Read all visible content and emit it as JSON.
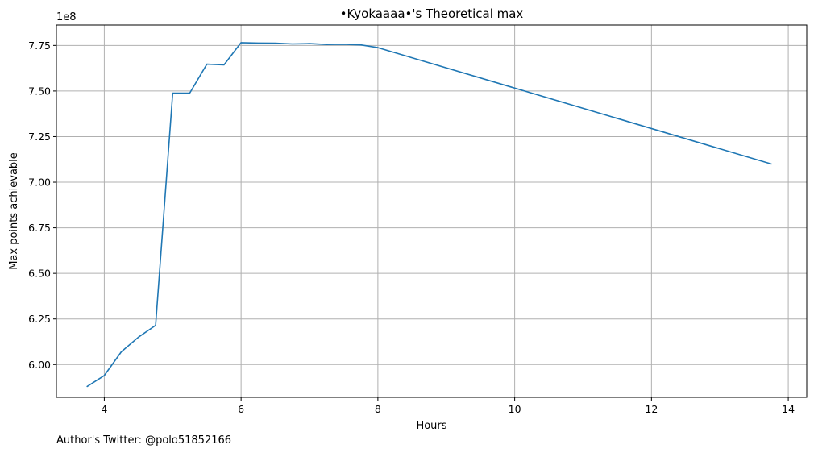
{
  "chart_data": {
    "type": "line",
    "title": "•Kyokaaaa•'s Theoretical max",
    "xlabel": "Hours",
    "ylabel": "Max points achievable",
    "y_scale_label": "1e8",
    "footer_note": "Author's Twitter: @polo51852166",
    "xlim": [
      3.3,
      14.27
    ],
    "ylim": [
      5.82,
      7.862
    ],
    "grid": true,
    "x_ticks": [
      4,
      6,
      8,
      10,
      12,
      14
    ],
    "x_tick_labels": [
      "4",
      "6",
      "8",
      "10",
      "12",
      "14"
    ],
    "y_ticks": [
      6.0,
      6.25,
      6.5,
      6.75,
      7.0,
      7.25,
      7.5,
      7.75
    ],
    "y_tick_labels": [
      "6.00",
      "6.25",
      "6.50",
      "6.75",
      "7.00",
      "7.25",
      "7.50",
      "7.75"
    ],
    "series": [
      {
        "name": "Theoretical max",
        "color": "#1f77b4",
        "x": [
          3.75,
          4.0,
          4.25,
          4.5,
          4.75,
          5.0,
          5.25,
          5.5,
          5.75,
          6.0,
          6.25,
          6.5,
          6.75,
          7.0,
          7.25,
          7.5,
          7.75,
          8.0,
          13.75
        ],
        "y": [
          5.88,
          5.94,
          6.07,
          6.15,
          6.215,
          7.488,
          7.489,
          7.647,
          7.643,
          7.765,
          7.763,
          7.762,
          7.758,
          7.76,
          7.755,
          7.756,
          7.753,
          7.738,
          7.1
        ]
      }
    ]
  }
}
